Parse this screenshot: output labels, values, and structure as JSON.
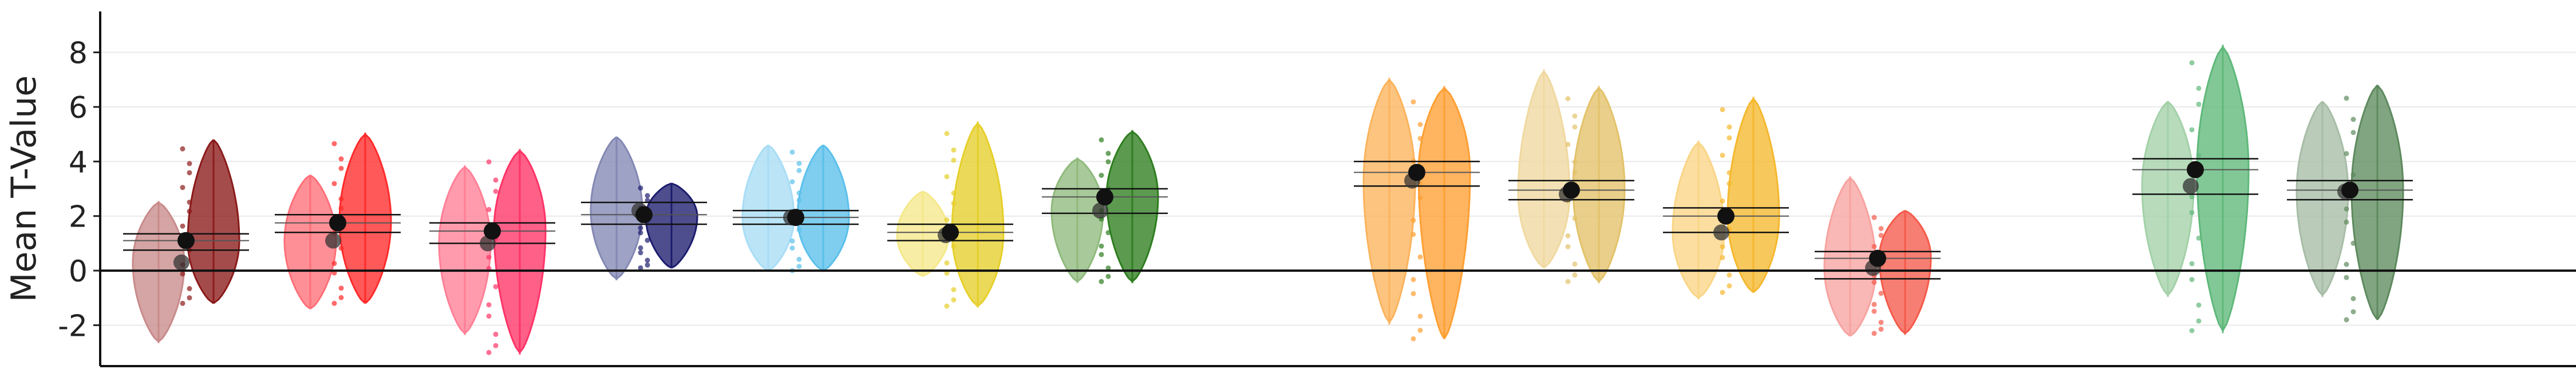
{
  "chart_data": {
    "type": "violin",
    "title": "",
    "xlabel": "",
    "ylabel": "Mean T-Value",
    "ylim": [
      -3.5,
      9.5
    ],
    "yticks": [
      -2,
      0,
      2,
      4,
      6,
      8
    ],
    "ytick_labels": [
      "-2",
      "0",
      "2",
      "4",
      "6",
      "8"
    ],
    "grid": "horizontal",
    "legend": "none",
    "reference_line_y": 0,
    "groups": [
      {
        "colors": [
          "#c98a8a",
          "#8b1a1a"
        ],
        "left": {
          "min": -2.6,
          "max": 2.5,
          "mean": 0.3
        },
        "right": {
          "min": -1.2,
          "max": 4.8,
          "mean": 1.1
        },
        "mean": 1.1,
        "ci": [
          0.75,
          1.35
        ]
      },
      {
        "colors": [
          "#ff6f78",
          "#ff2a2a"
        ],
        "left": {
          "min": -1.4,
          "max": 3.5,
          "mean": 1.1
        },
        "right": {
          "min": -1.2,
          "max": 5.0,
          "mean": 1.8
        },
        "mean": 1.75,
        "ci": [
          1.4,
          2.05
        ]
      },
      {
        "colors": [
          "#ff7f96",
          "#ff3366"
        ],
        "left": {
          "min": -2.3,
          "max": 3.8,
          "mean": 1.0
        },
        "right": {
          "min": -3.0,
          "max": 4.4,
          "mean": 1.5
        },
        "mean": 1.45,
        "ci": [
          1.0,
          1.75
        ]
      },
      {
        "colors": [
          "#8388b3",
          "#1c1c6e"
        ],
        "left": {
          "min": -0.3,
          "max": 4.9,
          "mean": 2.2
        },
        "right": {
          "min": 0.1,
          "max": 3.2,
          "mean": 2.0
        },
        "mean": 2.05,
        "ci": [
          1.7,
          2.5
        ]
      },
      {
        "colors": [
          "#a8ddf5",
          "#5bc0eb"
        ],
        "left": {
          "min": 0.0,
          "max": 4.6,
          "mean": 1.95
        },
        "right": {
          "min": 0.0,
          "max": 4.6,
          "mean": 1.95
        },
        "mean": 1.95,
        "ci": [
          1.7,
          2.2
        ]
      },
      {
        "colors": [
          "#f5e88a",
          "#e6cf2a"
        ],
        "left": {
          "min": -0.2,
          "max": 2.9,
          "mean": 1.3
        },
        "right": {
          "min": -1.3,
          "max": 5.4,
          "mean": 1.4
        },
        "mean": 1.4,
        "ci": [
          1.1,
          1.7
        ]
      },
      {
        "colors": [
          "#8fba7c",
          "#2e7d1f"
        ],
        "left": {
          "min": -0.4,
          "max": 4.1,
          "mean": 2.2
        },
        "right": {
          "min": -0.4,
          "max": 5.1,
          "mean": 2.7
        },
        "mean": 2.7,
        "ci": [
          2.1,
          3.0
        ]
      },
      {
        "colors": [
          "#fcb35c",
          "#ff9f33"
        ],
        "left": {
          "min": -1.9,
          "max": 7.0,
          "mean": 3.3
        },
        "right": {
          "min": -2.5,
          "max": 6.7,
          "mean": 3.6
        },
        "mean": 3.6,
        "ci": [
          3.1,
          4.0
        ]
      },
      {
        "colors": [
          "#f0d9a0",
          "#e3c269"
        ],
        "left": {
          "min": 0.1,
          "max": 7.3,
          "mean": 2.8
        },
        "right": {
          "min": -0.4,
          "max": 6.7,
          "mean": 3.0
        },
        "mean": 2.95,
        "ci": [
          2.6,
          3.3
        ]
      },
      {
        "colors": [
          "#fad585",
          "#f5b82e"
        ],
        "left": {
          "min": -1.0,
          "max": 4.7,
          "mean": 1.4
        },
        "right": {
          "min": -0.8,
          "max": 6.3,
          "mean": 2.0
        },
        "mean": 2.0,
        "ci": [
          1.4,
          2.3
        ]
      },
      {
        "colors": [
          "#f7a3a0",
          "#f55a4a"
        ],
        "left": {
          "min": -2.4,
          "max": 3.4,
          "mean": 0.1
        },
        "right": {
          "min": -2.3,
          "max": 2.2,
          "mean": 0.5
        },
        "mean": 0.45,
        "ci": [
          -0.3,
          0.7
        ]
      },
      {
        "colors": [
          "#a3d1a8",
          "#5fb87a"
        ],
        "left": {
          "min": -0.9,
          "max": 6.2,
          "mean": 3.1
        },
        "right": {
          "min": -2.2,
          "max": 8.2,
          "mean": 3.7
        },
        "mean": 3.7,
        "ci": [
          2.8,
          4.1
        ]
      },
      {
        "colors": [
          "#a7bda7",
          "#5e8a5e"
        ],
        "left": {
          "min": -0.9,
          "max": 6.2,
          "mean": 2.9
        },
        "right": {
          "min": -1.8,
          "max": 6.8,
          "mean": 2.95
        },
        "mean": 2.95,
        "ci": [
          2.6,
          3.3
        ]
      }
    ]
  }
}
